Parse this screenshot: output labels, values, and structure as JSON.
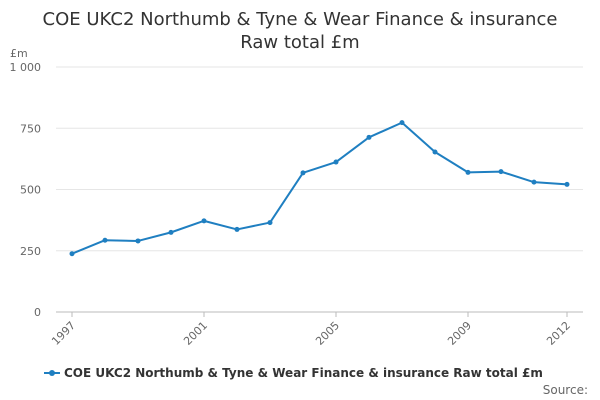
{
  "chart_data": {
    "type": "line",
    "title": "COE UKC2 Northumb & Tyne & Wear Finance & insurance",
    "subtitle": "Raw total £m",
    "ylabel": "£m",
    "xlabel": "",
    "ylim": [
      0,
      1000
    ],
    "y_ticks": [
      "0",
      "250",
      "500",
      "750",
      "1 000"
    ],
    "x_ticks": [
      "1997",
      "2001",
      "2005",
      "2009",
      "2012"
    ],
    "grid": true,
    "legend_position": "bottom",
    "series": [
      {
        "name": "COE UKC2 Northumb & Tyne & Wear Finance & insurance Raw total £m",
        "color": "#1f7fc1",
        "x": [
          1997,
          1998,
          1999,
          2000,
          2001,
          2002,
          2003,
          2004,
          2005,
          2006,
          2007,
          2008,
          2009,
          2010,
          2011,
          2012
        ],
        "values": [
          238,
          293,
          290,
          325,
          372,
          337,
          365,
          568,
          612,
          713,
          773,
          653,
          570,
          573,
          530,
          521
        ]
      }
    ],
    "source_label": "Source:"
  }
}
